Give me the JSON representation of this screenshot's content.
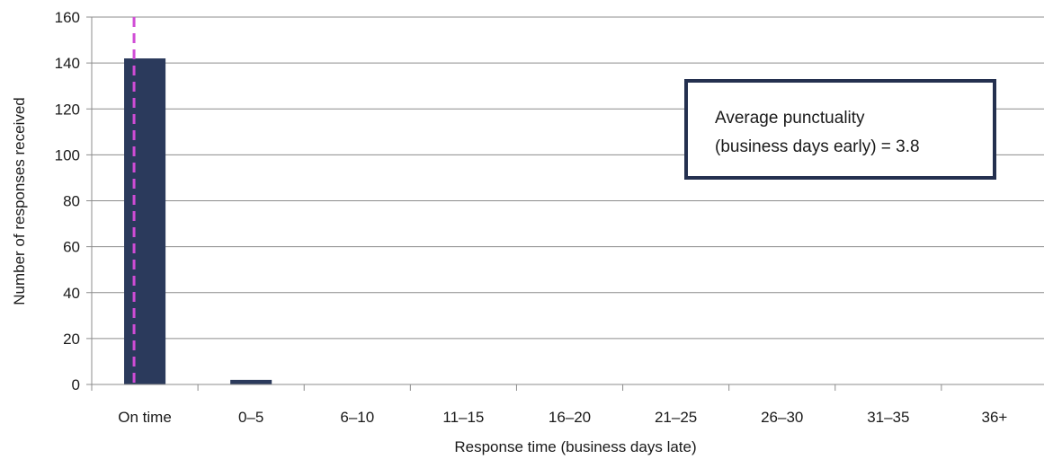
{
  "chart_data": {
    "type": "bar",
    "categories": [
      "On time",
      "0–5",
      "6–10",
      "11–15",
      "16–20",
      "21–25",
      "26–30",
      "31–35",
      "36+"
    ],
    "values": [
      142,
      2,
      0,
      0,
      0,
      0,
      0,
      0,
      0
    ],
    "xlabel": "Response time (business days late)",
    "ylabel": "Number  of responses received",
    "ylim": [
      0,
      160
    ],
    "yticks": [
      0,
      20,
      40,
      60,
      80,
      100,
      120,
      140,
      160
    ],
    "grid": true,
    "bar_color": "#2b3a5c",
    "grid_color": "#8c8c8c",
    "reference_line": {
      "category": "On time",
      "style": "dashed",
      "color": "#d04cd6"
    },
    "annotation": {
      "line1": "Average punctuality",
      "line2": "(business  days early) = 3.8",
      "border_color": "#24304f"
    }
  }
}
